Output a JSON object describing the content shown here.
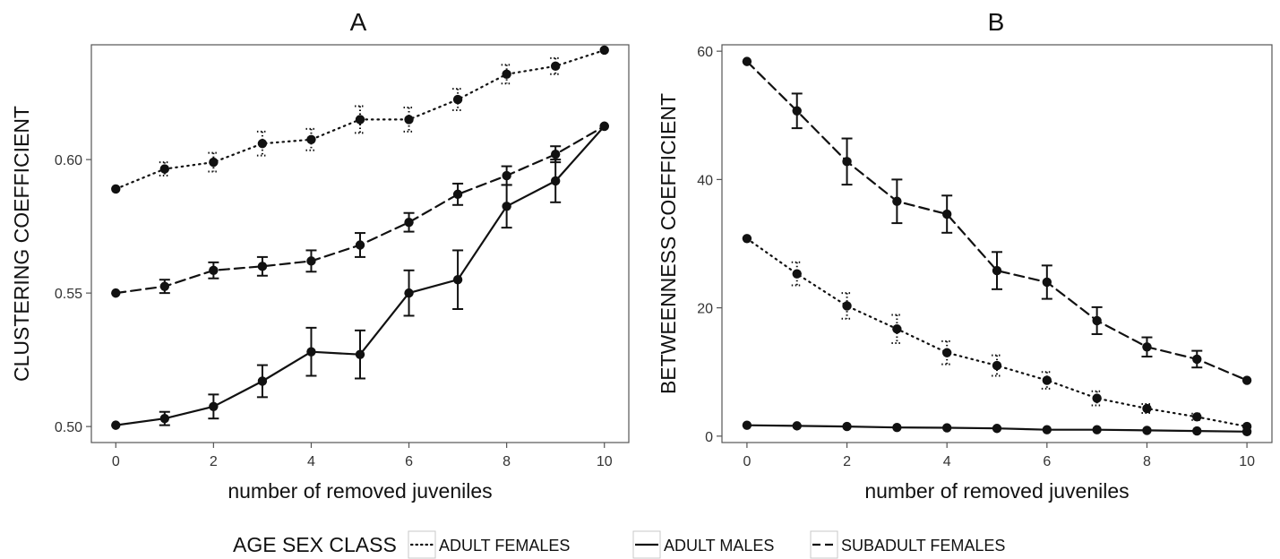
{
  "legend": {
    "title": "AGE SEX CLASS",
    "entries": [
      {
        "label": "ADULT FEMALES",
        "dash": "dotted"
      },
      {
        "label": "ADULT MALES",
        "dash": "solid"
      },
      {
        "label": "SUBADULT FEMALES",
        "dash": "dashed"
      }
    ]
  },
  "chart_data": [
    {
      "type": "line",
      "title": "A",
      "xlabel": "number of removed juveniles",
      "ylabel": "CLUSTERING COEFFICIENT",
      "x": [
        0,
        1,
        2,
        3,
        4,
        5,
        6,
        7,
        8,
        9,
        10
      ],
      "xlim": [
        -0.5,
        10.5
      ],
      "ylim": [
        0.494,
        0.643
      ],
      "xticks": [
        0,
        2,
        4,
        6,
        8,
        10
      ],
      "yticks": [
        0.5,
        0.55,
        0.6
      ],
      "ytick_labels": [
        "0.50",
        "0.55",
        "0.60"
      ],
      "grid": false,
      "series": [
        {
          "name": "ADULT FEMALES",
          "dash": "dotted",
          "values": [
            0.589,
            0.5965,
            0.599,
            0.606,
            0.6075,
            0.615,
            0.615,
            0.6225,
            0.632,
            0.635,
            0.641
          ],
          "err": [
            0,
            0.0025,
            0.0035,
            0.0045,
            0.004,
            0.005,
            0.0045,
            0.004,
            0.0035,
            0.003,
            0
          ]
        },
        {
          "name": "ADULT MALES",
          "dash": "solid",
          "values": [
            0.5005,
            0.503,
            0.5075,
            0.517,
            0.528,
            0.527,
            0.55,
            0.555,
            0.5825,
            0.592,
            0.6125
          ],
          "err": [
            0,
            0.0025,
            0.0045,
            0.006,
            0.009,
            0.009,
            0.0085,
            0.011,
            0.008,
            0.008,
            0
          ]
        },
        {
          "name": "SUBADULT FEMALES",
          "dash": "dashed",
          "values": [
            0.55,
            0.5525,
            0.5585,
            0.56,
            0.562,
            0.568,
            0.5765,
            0.587,
            0.594,
            0.602,
            0.6125
          ],
          "err": [
            0,
            0.0025,
            0.003,
            0.0035,
            0.004,
            0.0045,
            0.0035,
            0.004,
            0.0035,
            0.003,
            0
          ]
        }
      ]
    },
    {
      "type": "line",
      "title": "B",
      "xlabel": "number of removed juveniles",
      "ylabel": "BETWEENNESS COEFFICIENT",
      "x": [
        0,
        1,
        2,
        3,
        4,
        5,
        6,
        7,
        8,
        9,
        10
      ],
      "xlim": [
        -0.5,
        10.5
      ],
      "ylim": [
        -1,
        61
      ],
      "xticks": [
        0,
        2,
        4,
        6,
        8,
        10
      ],
      "yticks": [
        0,
        20,
        40,
        60
      ],
      "ytick_labels": [
        "0",
        "20",
        "40",
        "60"
      ],
      "grid": false,
      "series": [
        {
          "name": "ADULT FEMALES",
          "dash": "dotted",
          "values": [
            30.8,
            25.3,
            20.3,
            16.7,
            13.0,
            11.0,
            8.7,
            5.9,
            4.3,
            3.0,
            1.5
          ],
          "err": [
            0,
            1.8,
            2.0,
            2.2,
            1.8,
            1.6,
            1.3,
            1.1,
            0.7,
            0.5,
            0
          ]
        },
        {
          "name": "ADULT MALES",
          "dash": "solid",
          "values": [
            1.7,
            1.6,
            1.5,
            1.35,
            1.3,
            1.2,
            1.0,
            1.0,
            0.9,
            0.8,
            0.7
          ],
          "err": [
            0,
            0,
            0,
            0,
            0,
            0,
            0,
            0,
            0,
            0,
            0
          ]
        },
        {
          "name": "SUBADULT FEMALES",
          "dash": "dashed",
          "values": [
            58.4,
            50.7,
            42.8,
            36.6,
            34.6,
            25.8,
            24.0,
            18.0,
            13.9,
            12.0,
            8.7
          ],
          "err": [
            0,
            2.7,
            3.6,
            3.4,
            2.9,
            2.9,
            2.6,
            2.1,
            1.5,
            1.3,
            0
          ]
        }
      ]
    }
  ]
}
